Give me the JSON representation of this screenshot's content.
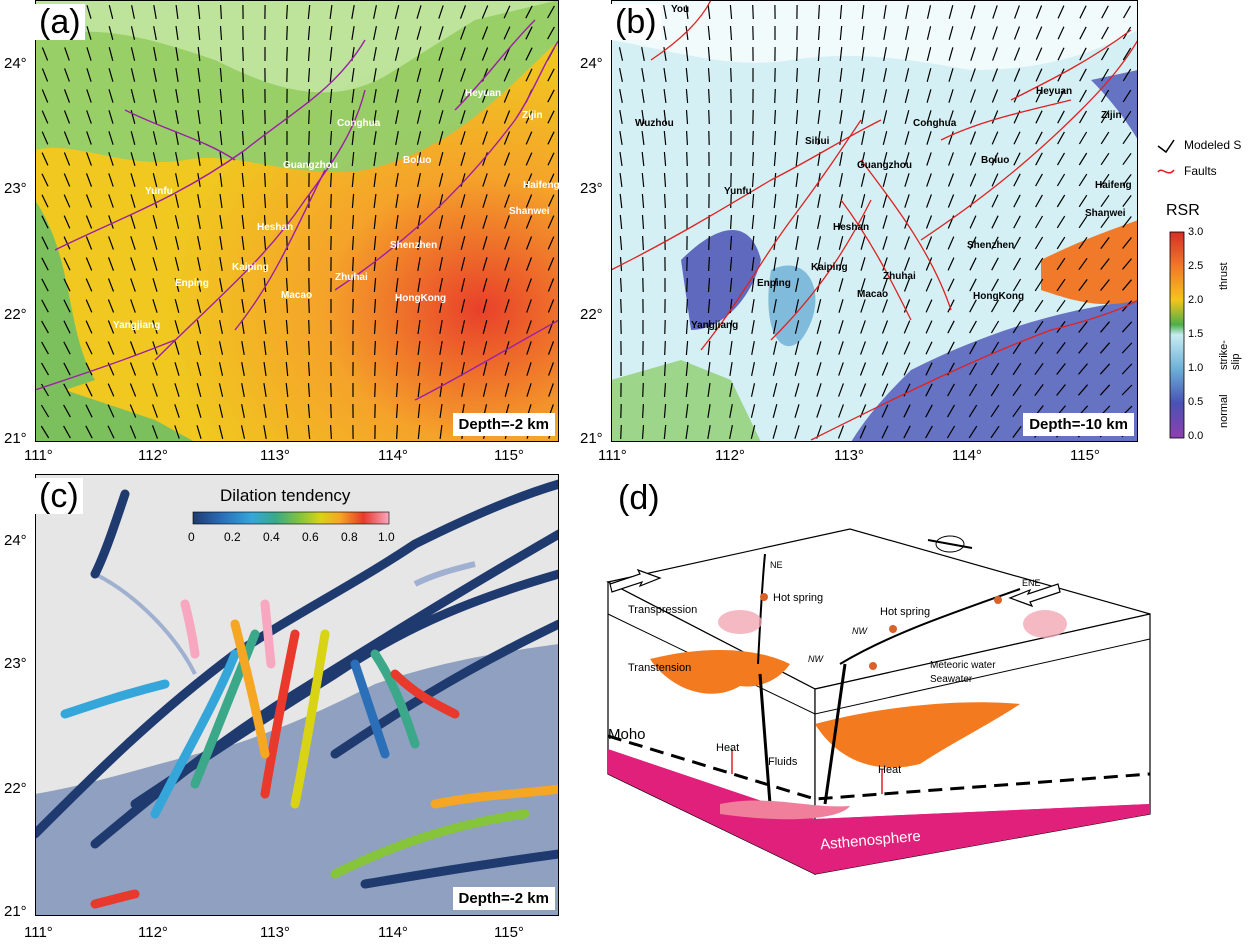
{
  "panels": {
    "a": {
      "letter": "(a)",
      "depth": "Depth=-2 km"
    },
    "b": {
      "letter": "(b)",
      "depth": "Depth=-10 km"
    },
    "c": {
      "letter": "(c)",
      "depth": "Depth=-2 km"
    },
    "d": {
      "letter": "(d)"
    }
  },
  "axes": {
    "lon_ticks": [
      "111°",
      "112°",
      "113°",
      "114°",
      "115°"
    ],
    "lat_ticks": [
      "24°",
      "23°",
      "22°",
      "21°"
    ]
  },
  "cities_a": [
    "Heyuan",
    "Zijin",
    "Conghua",
    "Guangzhou",
    "Boluo",
    "Haifeng",
    "Shanwei",
    "Yunfu",
    "Heshan",
    "Kaiping",
    "Enping",
    "Zhuhai",
    "Macao",
    "Shenzhen",
    "HongKong",
    "Yangjiang"
  ],
  "cities_b": [
    "You",
    "Wuzhou",
    "Sihui",
    "Conghua",
    "Heyuan",
    "Zijin",
    "Guangzhou",
    "Boluo",
    "Haifeng",
    "Shanwei",
    "Yunfu",
    "Heshan",
    "Shenzhen",
    "Kaiping",
    "Enping",
    "Zhuhai",
    "Macao",
    "HongKong",
    "Yangjiang"
  ],
  "legend": {
    "modeled": "Modeled S",
    "faults": "Faults",
    "rsr_title": "RSR",
    "rsr_ticks": [
      "3.0",
      "2.5",
      "2.0",
      "1.5",
      "1.0",
      "0.5",
      "0.0"
    ],
    "regimes": [
      "thrust",
      "strike-slip",
      "normal"
    ],
    "colors": [
      "#d62f27",
      "#f07a2a",
      "#f5c518",
      "#4daf4a",
      "#c8ecf2",
      "#6baed6",
      "#4a52b5",
      "#8e3fb0"
    ]
  },
  "dilation": {
    "title": "Dilation tendency",
    "ticks": [
      "0",
      "0.2",
      "0.4",
      "0.6",
      "0.8",
      "1.0"
    ],
    "colors": [
      "#1f3a6e",
      "#2a6fb8",
      "#35a6d9",
      "#3aa889",
      "#86c43b",
      "#d9d316",
      "#f5a623",
      "#e8392c",
      "#f7a8c0"
    ]
  },
  "diagram": {
    "hot_spring_1": "Hot spring",
    "hot_spring_2": "Hot spring",
    "transpression": "Transpression",
    "transtension": "Transtension",
    "moho": "Moho",
    "asthenosphere": "Asthenosphere",
    "heat_1": "Heat",
    "heat_2": "Heat",
    "fluids": "Fluids",
    "meteoric": "Meteoric water",
    "seawater": "Seawater",
    "ne": "NE",
    "ene": "ENE",
    "nw_1": "NW",
    "nw_2": "NW"
  }
}
